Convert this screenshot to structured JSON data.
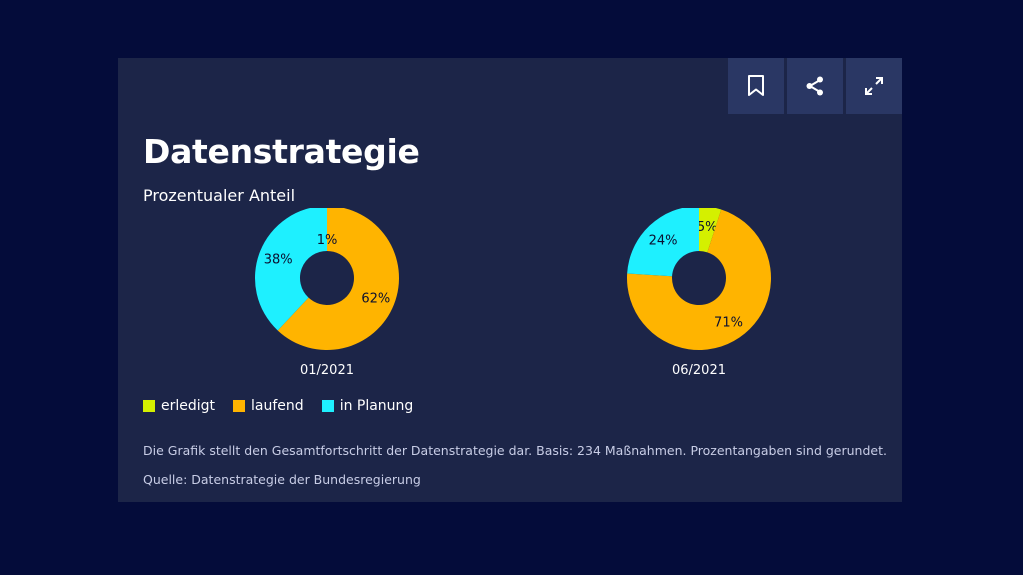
{
  "toolbar": {
    "buttons": [
      {
        "name": "bookmark",
        "icon": "bookmark-icon"
      },
      {
        "name": "share",
        "icon": "share-icon"
      },
      {
        "name": "fullscreen",
        "icon": "expand-icon"
      }
    ]
  },
  "description": "Die Grafik stellt den Gesamtfortschritt der Datenstrategie dar. Basis: 234 Maßnahmen. Prozentangaben sind gerundet.",
  "source": "Quelle: Datenstrategie der Bundesregierung",
  "colors": {
    "background": "#040c3a",
    "card": "#1c2548",
    "button": "#2a3764",
    "erledigt": "#d4f000",
    "laufend": "#ffb400",
    "in_planung": "#1ef0ff"
  },
  "chart_data": {
    "type": "pie",
    "variant": "donut",
    "title": "Datenstrategie",
    "subtitle": "Prozentualer Anteil",
    "categories": [
      "erledigt",
      "laufend",
      "in Planung"
    ],
    "legend_position": "bottom-left",
    "charts": [
      {
        "label": "01/2021",
        "values": [
          0,
          62,
          38
        ],
        "data_labels": [
          "",
          "62%",
          "38%"
        ],
        "extra_label": "1%"
      },
      {
        "label": "06/2021",
        "values": [
          5,
          71,
          24
        ],
        "data_labels": [
          "5%",
          "71%",
          "24%"
        ],
        "extra_label": ""
      }
    ]
  }
}
